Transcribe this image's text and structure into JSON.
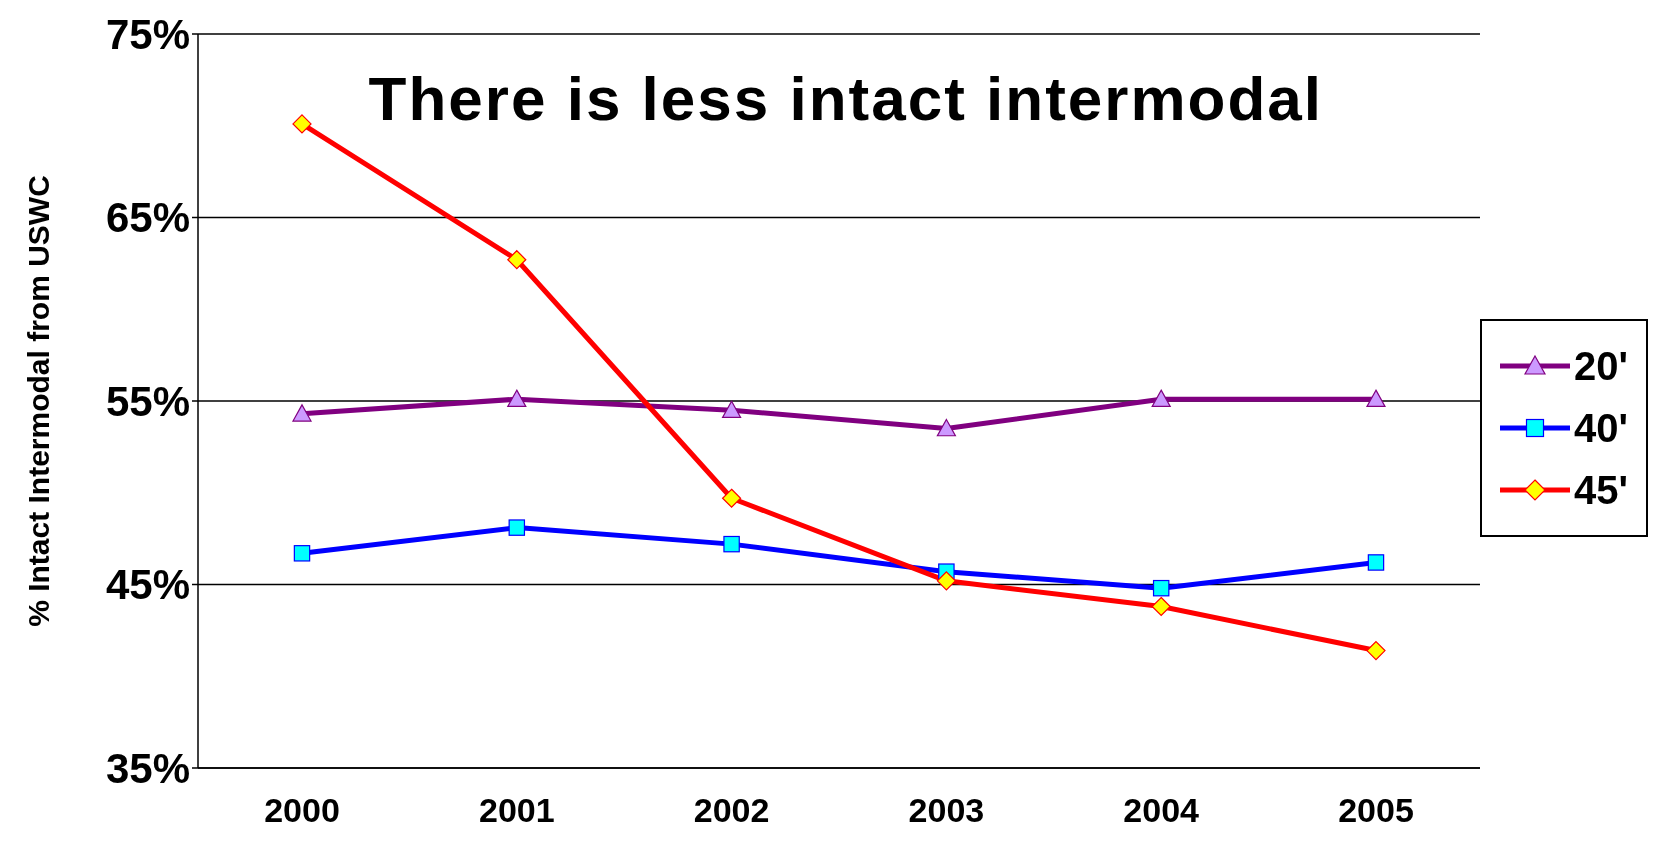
{
  "chart_data": {
    "type": "line",
    "title": "There is less intact intermodal",
    "ylabel": "% Intact Intermodal from USWC",
    "categories": [
      "2000",
      "2001",
      "2002",
      "2003",
      "2004",
      "2005"
    ],
    "series": [
      {
        "name": "20'",
        "color": "#800080",
        "marker": "triangle",
        "values": [
          54.3,
          55.1,
          54.5,
          53.5,
          55.1,
          55.1
        ]
      },
      {
        "name": "40'",
        "color": "#0000ff",
        "marker": "square",
        "values": [
          46.7,
          48.1,
          47.2,
          45.7,
          44.8,
          46.2
        ]
      },
      {
        "name": "45'",
        "color": "#ff0000",
        "marker": "diamond",
        "values": [
          70.1,
          62.7,
          49.7,
          45.2,
          43.8,
          41.4
        ]
      }
    ],
    "ylim": [
      35,
      75
    ],
    "yticks": [
      {
        "value": 35,
        "label": "35%"
      },
      {
        "value": 45,
        "label": "45%"
      },
      {
        "value": 55,
        "label": "55%"
      },
      {
        "value": 65,
        "label": "65%"
      },
      {
        "value": 75,
        "label": "75%"
      }
    ],
    "grid": "y",
    "legend": "right",
    "line_style": "solid"
  }
}
